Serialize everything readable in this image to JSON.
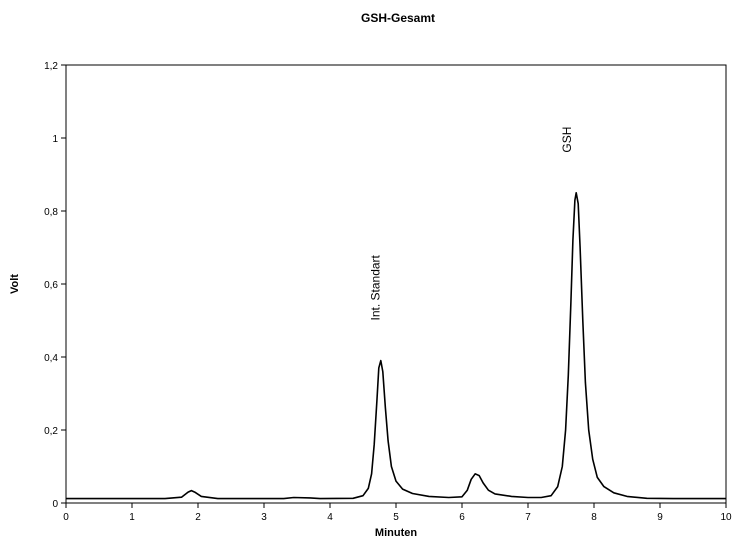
{
  "chart_data": {
    "type": "line",
    "title": "GSH-Gesamt",
    "xlabel": "Minuten",
    "ylabel": "Volt",
    "xlim": [
      0,
      10
    ],
    "ylim": [
      0,
      1.2
    ],
    "x_ticks": [
      {
        "value": 0,
        "label": "0"
      },
      {
        "value": 1,
        "label": "1"
      },
      {
        "value": 2,
        "label": "2"
      },
      {
        "value": 3,
        "label": "3"
      },
      {
        "value": 4,
        "label": "4"
      },
      {
        "value": 5,
        "label": "5"
      },
      {
        "value": 6,
        "label": "6"
      },
      {
        "value": 7,
        "label": "7"
      },
      {
        "value": 8,
        "label": "8"
      },
      {
        "value": 9,
        "label": "9"
      },
      {
        "value": 10,
        "label": "10"
      }
    ],
    "y_ticks": [
      {
        "value": 0,
        "label": "0"
      },
      {
        "value": 0.2,
        "label": "0,2"
      },
      {
        "value": 0.4,
        "label": "0,4"
      },
      {
        "value": 0.6,
        "label": "0,6"
      },
      {
        "value": 0.8,
        "label": "0,8"
      },
      {
        "value": 1.0,
        "label": "1"
      },
      {
        "value": 1.2,
        "label": "1,2"
      }
    ],
    "grid": false,
    "legend": "none",
    "line_color": "#000000",
    "annotations": [
      {
        "text": "Int. Standart",
        "x": 4.75,
        "y": 0.5,
        "rotation": -90
      },
      {
        "text": "GSH",
        "x": 7.65,
        "y": 0.96,
        "rotation": -90
      }
    ],
    "series": [
      {
        "values": [
          [
            0,
            0.012
          ],
          [
            1.0,
            0.012
          ],
          [
            1.5,
            0.012
          ],
          [
            1.75,
            0.016
          ],
          [
            1.85,
            0.03
          ],
          [
            1.9,
            0.034
          ],
          [
            1.95,
            0.03
          ],
          [
            2.05,
            0.018
          ],
          [
            2.3,
            0.012
          ],
          [
            3.3,
            0.012
          ],
          [
            3.45,
            0.015
          ],
          [
            3.7,
            0.014
          ],
          [
            3.85,
            0.012
          ],
          [
            4.35,
            0.013
          ],
          [
            4.5,
            0.02
          ],
          [
            4.58,
            0.04
          ],
          [
            4.63,
            0.08
          ],
          [
            4.67,
            0.16
          ],
          [
            4.71,
            0.28
          ],
          [
            4.74,
            0.37
          ],
          [
            4.77,
            0.39
          ],
          [
            4.8,
            0.36
          ],
          [
            4.84,
            0.26
          ],
          [
            4.88,
            0.17
          ],
          [
            4.93,
            0.1
          ],
          [
            5.0,
            0.06
          ],
          [
            5.1,
            0.038
          ],
          [
            5.25,
            0.026
          ],
          [
            5.5,
            0.018
          ],
          [
            5.8,
            0.015
          ],
          [
            6.0,
            0.017
          ],
          [
            6.08,
            0.035
          ],
          [
            6.14,
            0.065
          ],
          [
            6.2,
            0.08
          ],
          [
            6.26,
            0.075
          ],
          [
            6.32,
            0.055
          ],
          [
            6.4,
            0.035
          ],
          [
            6.5,
            0.025
          ],
          [
            6.75,
            0.018
          ],
          [
            7.0,
            0.015
          ],
          [
            7.2,
            0.015
          ],
          [
            7.35,
            0.02
          ],
          [
            7.45,
            0.045
          ],
          [
            7.52,
            0.1
          ],
          [
            7.57,
            0.2
          ],
          [
            7.61,
            0.35
          ],
          [
            7.65,
            0.55
          ],
          [
            7.68,
            0.72
          ],
          [
            7.71,
            0.83
          ],
          [
            7.73,
            0.85
          ],
          [
            7.76,
            0.82
          ],
          [
            7.79,
            0.7
          ],
          [
            7.83,
            0.5
          ],
          [
            7.87,
            0.33
          ],
          [
            7.92,
            0.2
          ],
          [
            7.98,
            0.12
          ],
          [
            8.05,
            0.07
          ],
          [
            8.15,
            0.045
          ],
          [
            8.3,
            0.028
          ],
          [
            8.5,
            0.018
          ],
          [
            8.8,
            0.013
          ],
          [
            9.2,
            0.012
          ],
          [
            10,
            0.012
          ]
        ]
      }
    ]
  }
}
